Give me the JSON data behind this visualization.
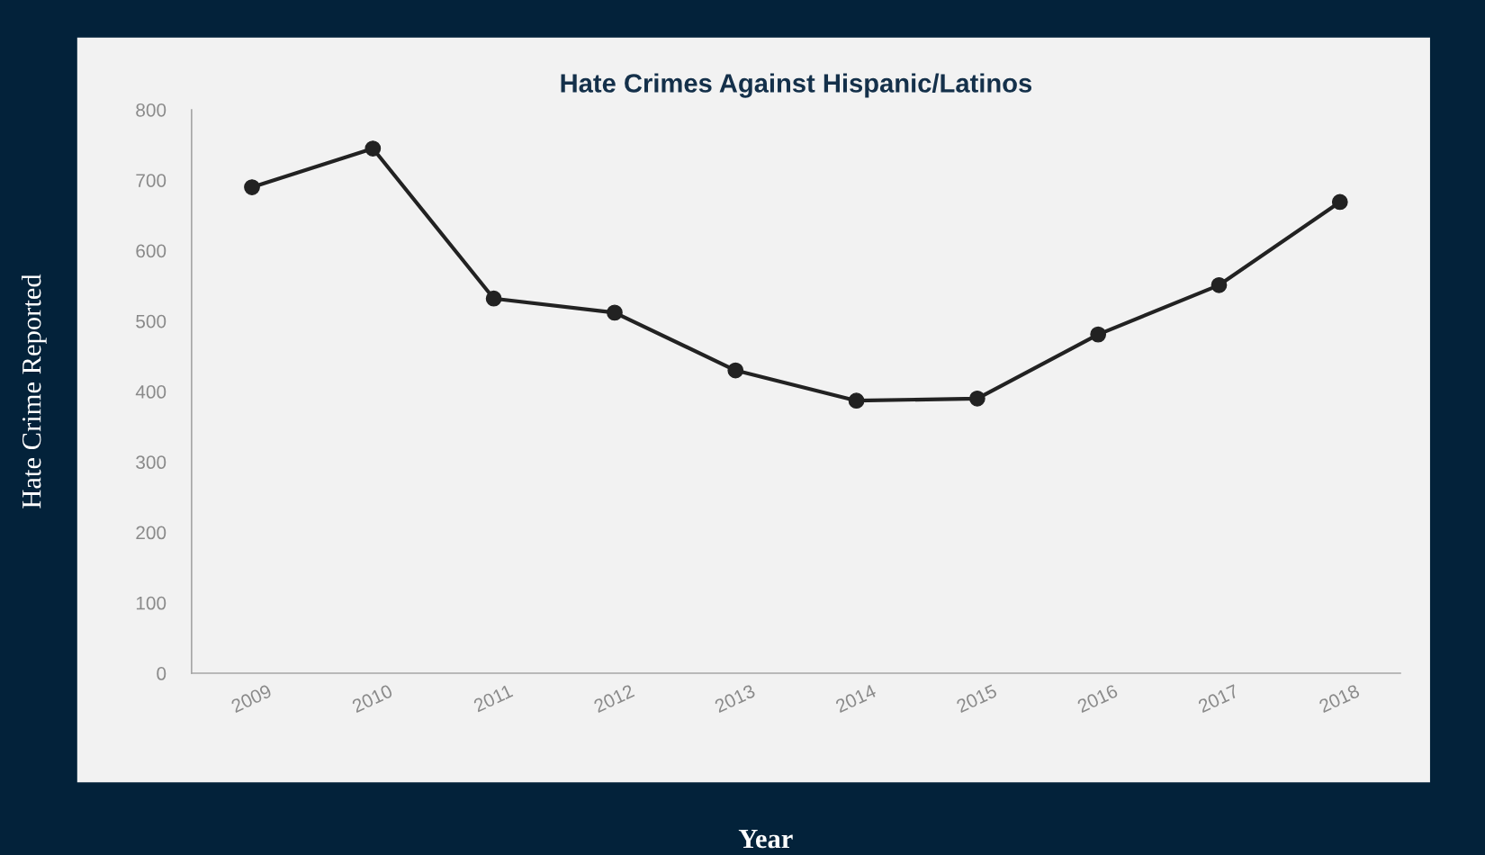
{
  "chart_data": {
    "type": "line",
    "title": "Hate Crimes Against Hispanic/Latinos",
    "xlabel": "Year",
    "ylabel": "Hate Crime Reported",
    "categories": [
      "2009",
      "2010",
      "2011",
      "2012",
      "2013",
      "2014",
      "2015",
      "2016",
      "2017",
      "2018"
    ],
    "series": [
      {
        "color": "#222222",
        "values": [
          690,
          745,
          532,
          512,
          430,
          387,
          390,
          481,
          551,
          669
        ]
      }
    ],
    "ylim": [
      0,
      800
    ],
    "yticks": [
      0,
      100,
      200,
      300,
      400,
      500,
      600,
      700,
      800
    ],
    "grid": false,
    "legend": false,
    "marker": "circle",
    "line_style": "solid"
  }
}
